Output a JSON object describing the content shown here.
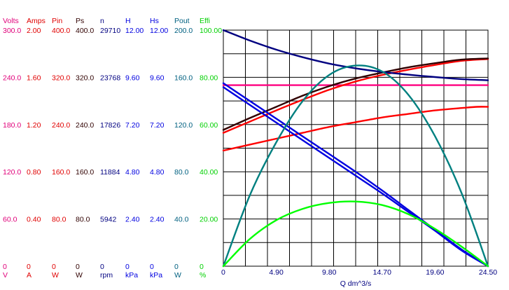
{
  "chart_data": {
    "type": "line",
    "x_axis": {
      "label": "Q  dm^3/s",
      "min": 0,
      "max": 24.5,
      "ticks": [
        "0",
        "4.90",
        "9.80",
        "14.70",
        "19.60",
        "24.50"
      ],
      "grid_lines": 12
    },
    "y_grid_lines": 10,
    "axes": [
      {
        "key": "volts",
        "title": "Volts",
        "unit": "V",
        "color": "#e0007a",
        "min": 0,
        "max": 300,
        "ticks": [
          "0",
          "60.0",
          "120.0",
          "180.0",
          "240.0",
          "300.0"
        ]
      },
      {
        "key": "amps",
        "title": "Amps",
        "unit": "A",
        "color": "#e00000",
        "min": 0,
        "max": 2,
        "ticks": [
          "0",
          "0.40",
          "0.80",
          "1.20",
          "1.60",
          "2.00"
        ]
      },
      {
        "key": "pin",
        "title": "Pin",
        "unit": "W",
        "color": "#e00000",
        "min": 0,
        "max": 400,
        "ticks": [
          "0",
          "80.0",
          "160.0",
          "240.0",
          "320.0",
          "400.0"
        ]
      },
      {
        "key": "ps",
        "title": "Ps",
        "unit": "W",
        "color": "#300000",
        "min": 0,
        "max": 400,
        "ticks": [
          "0",
          "80.0",
          "160.0",
          "240.0",
          "320.0",
          "400.0"
        ]
      },
      {
        "key": "n",
        "title": "n",
        "unit": "rpm",
        "color": "#000080",
        "min": 0,
        "max": 29710,
        "ticks": [
          "0",
          "5942",
          "11884",
          "17826",
          "23768",
          "29710"
        ]
      },
      {
        "key": "h",
        "title": "H",
        "unit": "kPa",
        "color": "#0000e0",
        "min": 0,
        "max": 12,
        "ticks": [
          "0",
          "2.40",
          "4.80",
          "7.20",
          "9.60",
          "12.00"
        ]
      },
      {
        "key": "hs",
        "title": "Hs",
        "unit": "kPa",
        "color": "#0000e0",
        "min": 0,
        "max": 12,
        "ticks": [
          "0",
          "2.40",
          "4.80",
          "7.20",
          "9.60",
          "12.00"
        ]
      },
      {
        "key": "pout",
        "title": "Pout",
        "unit": "W",
        "color": "#006080",
        "min": 0,
        "max": 200,
        "ticks": [
          "0",
          "40.0",
          "80.0",
          "120.0",
          "160.0",
          "200.0"
        ]
      },
      {
        "key": "effi",
        "title": "Effi",
        "unit": "%",
        "color": "#00d000",
        "min": 0,
        "max": 100,
        "ticks": [
          "0",
          "20.00",
          "40.00",
          "60.00",
          "80.00",
          "100.00"
        ]
      }
    ],
    "series": [
      {
        "key": "volts",
        "color": "#ff0080",
        "x": [
          0,
          24.5
        ],
        "y": [
          230,
          230
        ]
      },
      {
        "key": "amps",
        "color": "#ff0000",
        "x": [
          0,
          2.45,
          4.9,
          7.35,
          9.8,
          12.25,
          14.7,
          17.15,
          19.6,
          22.05,
          23.5,
          24.5
        ],
        "y": [
          0.98,
          1.03,
          1.08,
          1.13,
          1.18,
          1.22,
          1.26,
          1.29,
          1.32,
          1.34,
          1.35,
          1.35
        ]
      },
      {
        "key": "pin",
        "color": "#ff0000",
        "x": [
          0,
          2.45,
          4.9,
          7.35,
          9.8,
          12.25,
          14.7,
          17.15,
          19.6,
          22.05,
          24.5
        ],
        "y": [
          226,
          245,
          264,
          282,
          299,
          313,
          324,
          333,
          341,
          348,
          351
        ]
      },
      {
        "key": "ps",
        "color": "#300000",
        "x": [
          0,
          2.45,
          4.9,
          7.35,
          9.8,
          12.25,
          14.7,
          17.15,
          19.6,
          22.05,
          24.5
        ],
        "y": [
          231,
          251,
          270,
          289,
          305,
          318,
          328,
          337,
          344,
          350,
          352
        ]
      },
      {
        "key": "n",
        "color": "#000080",
        "x": [
          0,
          2.45,
          4.9,
          7.35,
          9.8,
          12.25,
          14.7,
          17.15,
          19.6,
          22.05,
          24.5
        ],
        "y": [
          29710,
          28400,
          27250,
          26300,
          25500,
          24900,
          24450,
          24100,
          23800,
          23550,
          23400
        ]
      },
      {
        "key": "h",
        "color": "#0000e0",
        "x": [
          0,
          2.45,
          4.9,
          7.35,
          9.8,
          12.25,
          14.7,
          17.15,
          19.6,
          22.05,
          24.5
        ],
        "y": [
          9.3,
          8.4,
          7.5,
          6.6,
          5.7,
          4.8,
          3.85,
          2.85,
          1.85,
          0.85,
          0
        ]
      },
      {
        "key": "hs",
        "color": "#0000e0",
        "x": [
          0,
          2.45,
          4.9,
          7.35,
          9.8,
          12.25,
          14.7,
          17.15,
          19.6,
          22.05,
          24.5
        ],
        "y": [
          9.1,
          8.2,
          7.3,
          6.4,
          5.5,
          4.6,
          3.7,
          2.75,
          1.8,
          0.8,
          0
        ]
      },
      {
        "key": "pout",
        "color": "#008080",
        "x": [
          0,
          2.45,
          4.9,
          7.35,
          9.8,
          12.25,
          14.7,
          17.15,
          19.6,
          22.05,
          24.5
        ],
        "y": [
          0,
          60,
          105,
          140,
          162,
          170,
          165,
          145,
          110,
          62,
          0
        ]
      },
      {
        "key": "effi",
        "color": "#00ff00",
        "x": [
          0,
          2.45,
          4.9,
          7.35,
          9.8,
          12.25,
          14.7,
          17.15,
          19.6,
          22.05,
          24.5
        ],
        "y": [
          0,
          11.5,
          19.5,
          24.3,
          26.8,
          27.4,
          25.9,
          22.0,
          15.8,
          8.3,
          0
        ]
      }
    ]
  }
}
